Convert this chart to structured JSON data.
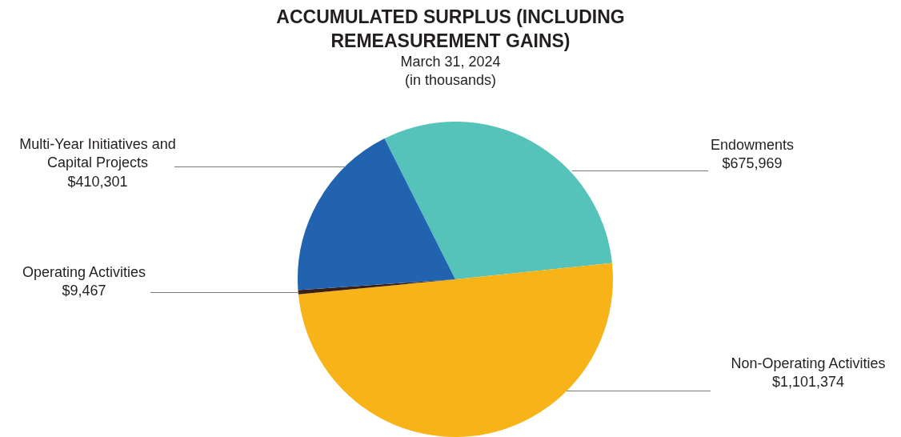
{
  "chart_data": {
    "type": "pie",
    "title": "ACCUMULATED SURPLUS (INCLUDING REMEASUREMENT GAINS)",
    "subtitle": "March 31, 2024 (in thousands)",
    "categories": [
      "Endowments",
      "Non-Operating Activities",
      "Operating Activities",
      "Multi-Year Initiatives and Capital Projects"
    ],
    "values": [
      675969,
      1101374,
      9467,
      410301
    ],
    "value_labels": [
      "$675,969",
      "$1,101,374",
      "$9,467",
      "$410,301"
    ],
    "colors": [
      "#55c3b9",
      "#f8b319",
      "#3b1f14",
      "#2263b0"
    ],
    "legend": false
  }
}
